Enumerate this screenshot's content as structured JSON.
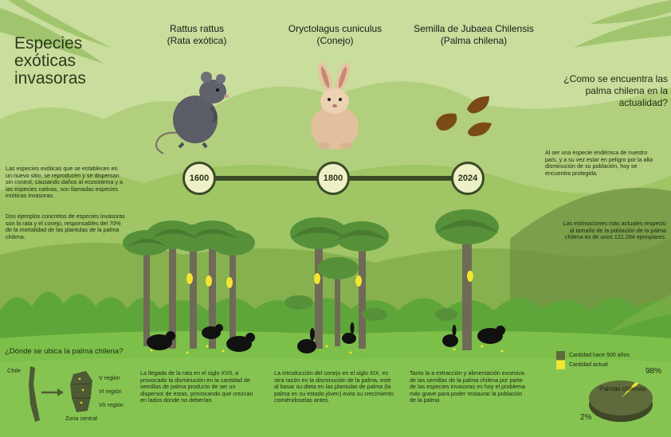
{
  "title": "Especies\nexóticas\ninvasoras",
  "species": [
    {
      "name": "Rattus rattus\n(Rata exótica)",
      "icon": "rat-icon"
    },
    {
      "name": "Oryctolagus cuniculus\n(Conejo)",
      "icon": "rabbit-icon"
    },
    {
      "name": "Semilla de Jubaea Chilensis\n(Palma chilena)",
      "icon": "palm-seed-icon"
    }
  ],
  "timeline": [
    "1600",
    "1800",
    "2024"
  ],
  "left_text": {
    "p1": "Las especies exóticas que se establecen en un nuevo sitio, se reproducen y se dispersan sin control, causando daños al ecosistema y a las especies nativas, son llamadas especies exóticas invasoras.",
    "p2": " Dos ejemplos concretos de especies invasoras son la rata y el conejo, responsables del 70% de la mortalidad de las plantulas de la palma chilena."
  },
  "right_question": "¿Como se encuentra las palma chilena en la actualidad?",
  "right_text": {
    "p1": "Al ser una especie endémica de nuestro país, y a su vez estar en peligro por la alta disminución de su población, hoy se encuentra protegida.",
    "p2": "Las estimaciones más actuales respecto al tamaño de la población de la palma chilena es de unos 121.284 ejemplares."
  },
  "where_title": "¿Dónde se ubica la palma chilena?",
  "map": {
    "chile_label": "Chile",
    "regions": [
      "V región",
      "VI región",
      "VII región"
    ],
    "zone_label": "Zona central"
  },
  "bottom_texts": [
    "La llegada de la rata en el siglo XVII, a provocado la disminución en la cantidad de semillas de palma producto de ser un dispersor de estas, provocando que crezcan en lados donde no deberían.",
    "La introducción del conejo en el siglo XIX, es otra razón en la disminución de la palma, este al basar su dieta en las plantulas de palma (la palma en su estado jóven) evita su crecimiento comiéndoselas antes.",
    "Tanto la a extracción y alimentación excesiva de las semillas de la palma chilena por parte de las especies invasoras es hoy el problema más grave para poder restaurar la población de la palma."
  ],
  "chart_data": {
    "type": "pie",
    "title": "Palmas chilenas",
    "categories": [
      "Cantidad hace 500 años",
      "Cantidad actual"
    ],
    "values": [
      98,
      2
    ],
    "labels": [
      "98%",
      "2%"
    ],
    "colors": [
      "#5e6b3a",
      "#f4e531"
    ]
  },
  "colors": {
    "bg_light": "#c9dd9c",
    "hill_mid": "#9fc565",
    "hill_dark": "#6c9a3b",
    "ground": "#5fa63a",
    "ground_bright": "#7cc04a",
    "timeline": "#3b4a26",
    "trunk": "#6f6a56",
    "frond": "#56913a",
    "accent_yellow": "#f4e531"
  }
}
